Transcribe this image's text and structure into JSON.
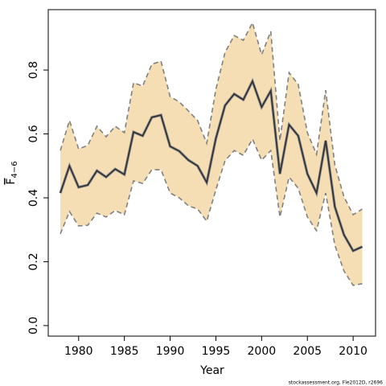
{
  "chart_data": {
    "type": "line-band",
    "xlabel": "Year",
    "ylabel": "F",
    "ylabel_sub": "4−6",
    "footer": "stockassessment.org, Fle2012D, r2696",
    "x": [
      1978,
      1979,
      1980,
      1981,
      1982,
      1983,
      1984,
      1985,
      1986,
      1987,
      1988,
      1989,
      1990,
      1991,
      1992,
      1993,
      1994,
      1995,
      1996,
      1997,
      1998,
      1999,
      2000,
      2001,
      2002,
      2003,
      2004,
      2005,
      2006,
      2007,
      2008,
      2009,
      2010,
      2011
    ],
    "values": [
      0.415,
      0.5,
      0.433,
      0.44,
      0.485,
      0.465,
      0.49,
      0.473,
      0.606,
      0.594,
      0.652,
      0.659,
      0.561,
      0.546,
      0.518,
      0.5,
      0.448,
      0.586,
      0.689,
      0.725,
      0.707,
      0.765,
      0.684,
      0.735,
      0.475,
      0.629,
      0.594,
      0.475,
      0.415,
      0.579,
      0.372,
      0.284,
      0.234,
      0.247
    ],
    "upper": [
      0.548,
      0.642,
      0.553,
      0.564,
      0.624,
      0.591,
      0.624,
      0.604,
      0.76,
      0.75,
      0.818,
      0.828,
      0.717,
      0.7,
      0.672,
      0.642,
      0.571,
      0.74,
      0.855,
      0.908,
      0.893,
      0.948,
      0.848,
      0.921,
      0.579,
      0.792,
      0.755,
      0.604,
      0.536,
      0.737,
      0.503,
      0.403,
      0.347,
      0.365
    ],
    "lower": [
      0.287,
      0.357,
      0.312,
      0.314,
      0.352,
      0.34,
      0.36,
      0.347,
      0.453,
      0.445,
      0.488,
      0.488,
      0.415,
      0.4,
      0.375,
      0.365,
      0.327,
      0.425,
      0.516,
      0.548,
      0.533,
      0.584,
      0.518,
      0.548,
      0.34,
      0.465,
      0.43,
      0.34,
      0.297,
      0.415,
      0.252,
      0.171,
      0.126,
      0.131
    ],
    "color": "#333333",
    "band_color": "#f5deb3",
    "band_edge_color": "#808080",
    "xlim": [
      1976.68,
      2012.45
    ],
    "ylim": [
      -0.033,
      0.989
    ],
    "xticks": [
      1980,
      1985,
      1990,
      1995,
      2000,
      2005,
      2010
    ],
    "yticks": [
      {
        "value": 0,
        "label": "0.0"
      },
      0.2,
      0.4,
      0.6,
      0.8
    ]
  }
}
